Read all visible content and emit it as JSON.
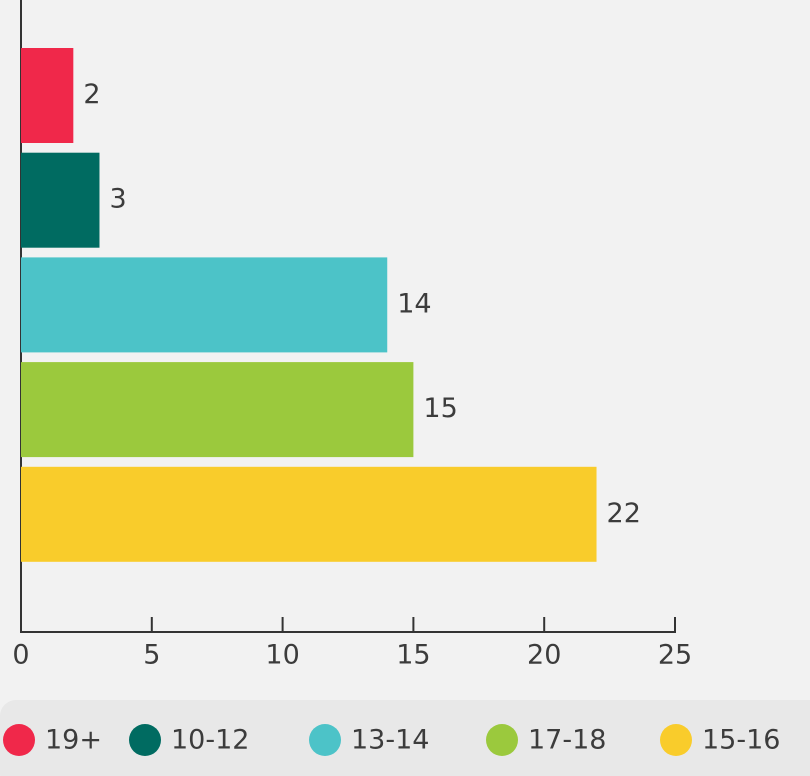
{
  "chart_data": {
    "type": "bar",
    "orientation": "horizontal",
    "categories": [
      "19+",
      "10-12",
      "13-14",
      "17-18",
      "15-16"
    ],
    "values": [
      2,
      3,
      14,
      15,
      22
    ],
    "colors": [
      "#f0284a",
      "#006b61",
      "#4cc3c8",
      "#9bc93d",
      "#f9cc2b"
    ],
    "xlim": [
      0,
      25
    ],
    "xticks": [
      0,
      5,
      10,
      15,
      20,
      25
    ],
    "legend": "bottom"
  }
}
